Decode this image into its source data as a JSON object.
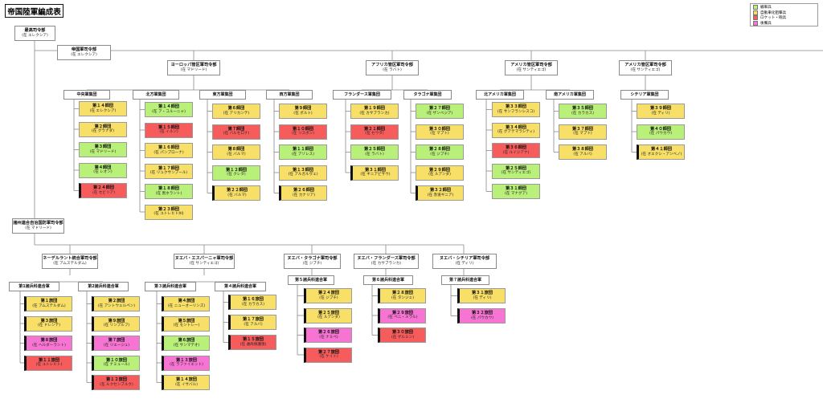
{
  "title": "帝国陸軍編成表",
  "legend": [
    {
      "label": "戦車兵",
      "color": "#b9f07a"
    },
    {
      "label": "自動車化狙撃兵",
      "color": "#f8df67"
    },
    {
      "label": "ロケット・砲兵",
      "color": "#f75c5c"
    },
    {
      "label": "後備兵",
      "color": "#f774d3"
    }
  ],
  "hq": {
    "supreme": {
      "name": "最高司令部",
      "loc": "(在 エレクシア)"
    },
    "imperial": {
      "name": "帝国軍司令部",
      "loc": "(在 エレクシア)"
    },
    "europe": {
      "name": "ヨーロッパ管区軍司令部",
      "loc": "(在 マドリード)"
    },
    "africa": {
      "name": "アフリカ管区軍司令部",
      "loc": "(在 ラバト)"
    },
    "america1": {
      "name": "アメリカ管区軍司令部",
      "loc": "(在 サンティエゴ)"
    },
    "america2": {
      "name": "アメリカ管区軍司令部",
      "loc": "(在 サンティエゴ)"
    },
    "allied": {
      "name": "諸州連合自治国防軍司令部",
      "loc": "(在 マドリード)"
    },
    "neder": {
      "name": "ネーデルラント統合軍司令部",
      "loc": "(在 アムステルダム)"
    },
    "nueva_esp": {
      "name": "ヌエバ・エスパーニャ軍司令部",
      "loc": "(在 サンティエゴ)"
    },
    "nueva_tar": {
      "name": "ヌエバ・タラゴナ軍司令部",
      "loc": "(在 ジブチ)"
    },
    "nueva_fla": {
      "name": "ヌエバ・フランダース軍司令部",
      "loc": "(在 カサブランカ)"
    },
    "nueva_sic": {
      "name": "ヌエバ・シチリア軍司令部",
      "loc": "(在 ディリ)"
    }
  },
  "groups": {
    "g_chuo": "中央軍集団",
    "g_hoppo": "北方軍集団",
    "g_toho": "東方軍集団",
    "g_seiho": "西方軍集団",
    "g_flanders": "フランダース軍集団",
    "g_tarragona": "タラゴナ軍集団",
    "g_kita_am": "北アメリカ軍集団",
    "g_minami_am": "南アメリカ軍集団",
    "g_sicilia": "シチリア軍集団",
    "g_l1": "第1諸兵科連合軍",
    "g_l2": "第2諸兵科連合軍",
    "g_l3": "第３諸兵科連合軍",
    "g_l4": "第４諸兵科連合軍",
    "g_l5": "第５諸兵科連合軍",
    "g_l6": "第６諸兵科連合軍",
    "g_l7": "第７諸兵科連合軍"
  },
  "units": {
    "d14": {
      "name": "第１４師団",
      "loc": "(在 エレクシア)",
      "type": "inf"
    },
    "d2": {
      "name": "第２師団",
      "loc": "(在 グラナダ)",
      "type": "inf"
    },
    "d3": {
      "name": "第３師団",
      "loc": "(在 マドリード)",
      "type": "arm"
    },
    "d4": {
      "name": "第４師団",
      "loc": "(在 レオン)",
      "type": "arm"
    },
    "d24": {
      "name": "第２４師団",
      "loc": "(在 セビリア)",
      "type": "rkt"
    },
    "d14b": {
      "name": "第１４師団",
      "loc": "(在 ア・コルーニャ)",
      "type": "arm"
    },
    "d15": {
      "name": "第１５師団",
      "loc": "(在 イルン)",
      "type": "rkt"
    },
    "d16": {
      "name": "第１６師団",
      "loc": "(在 パンプローナ)",
      "type": "inf"
    },
    "d17": {
      "name": "第１７師団",
      "loc": "(在 リュクサンブール)",
      "type": "inf"
    },
    "d18": {
      "name": "第１８師団",
      "loc": "(在 黒ホラント)",
      "type": "arm"
    },
    "d23": {
      "name": "第２３師団",
      "loc": "(在 ユトレヒト州)",
      "type": "inf"
    },
    "d6": {
      "name": "第６師団",
      "loc": "(在 アリカンテ)",
      "type": "inf"
    },
    "d7": {
      "name": "第７師団",
      "loc": "(在 バルセロナ)",
      "type": "rkt"
    },
    "d8": {
      "name": "第８師団",
      "loc": "(在 バルマ)",
      "type": "inf"
    },
    "d12": {
      "name": "第１２師団",
      "loc": "(在 クレタ)",
      "type": "arm"
    },
    "d22": {
      "name": "第２２師団",
      "loc": "(在 バルマ)",
      "type": "inf"
    },
    "d9": {
      "name": "第９師団",
      "loc": "(在 ポルト)",
      "type": "inf"
    },
    "d10": {
      "name": "第１０師団",
      "loc": "(在 リスボン)",
      "type": "rkt"
    },
    "d11": {
      "name": "第１１師団",
      "loc": "(在 アゾレス)",
      "type": "arm"
    },
    "d13": {
      "name": "第１３師団",
      "loc": "(在 アルガルヴェ)",
      "type": "inf"
    },
    "d26": {
      "name": "第２６師団",
      "loc": "(在 カナリア)",
      "type": "inf"
    },
    "d19": {
      "name": "第１９師団",
      "loc": "(在 カサブランカ)",
      "type": "inf"
    },
    "d21": {
      "name": "第２１師団",
      "loc": "(在 セウタ)",
      "type": "rkt"
    },
    "d25": {
      "name": "第２５師団",
      "loc": "(在 ラバト)",
      "type": "arm"
    },
    "d31": {
      "name": "第３１師団",
      "loc": "(在 ギニアビサウ)",
      "type": "inf"
    },
    "d27": {
      "name": "第２７師団",
      "loc": "(在 ザンベジア)",
      "type": "arm"
    },
    "d30": {
      "name": "第３０師団",
      "loc": "(在 マプト)",
      "type": "inf"
    },
    "d28": {
      "name": "第２８師団",
      "loc": "(在 ジブチ)",
      "type": "arm"
    },
    "d29": {
      "name": "第２９師団",
      "loc": "(在 ルアンダ)",
      "type": "inf"
    },
    "d32": {
      "name": "第３２師団",
      "loc": "(在 赤道ギニア)",
      "type": "inf"
    },
    "d33": {
      "name": "第３３師団",
      "loc": "(在 サンフランシスコ)",
      "type": "inf"
    },
    "d34": {
      "name": "第３４師団",
      "loc": "(在 グアテマラシティ)",
      "type": "inf"
    },
    "d36": {
      "name": "第３６師団",
      "loc": "(在 ルイジアナ)",
      "type": "rkt"
    },
    "d25b": {
      "name": "第２５師団",
      "loc": "(在 サンティエゴ)",
      "type": "arm"
    },
    "d31b": {
      "name": "第３１師団",
      "loc": "(在 マナグア)",
      "type": "arm"
    },
    "d35": {
      "name": "第３５師団",
      "loc": "(在 カラカス)",
      "type": "arm"
    },
    "d37": {
      "name": "第３７師団",
      "loc": "(在 マプト)",
      "type": "inf"
    },
    "d38": {
      "name": "第３８師団",
      "loc": "(在 アルバ)",
      "type": "inf"
    },
    "d39": {
      "name": "第３９師団",
      "loc": "(在 ディリ)",
      "type": "inf"
    },
    "d40": {
      "name": "第４０師団",
      "loc": "(在 パウカウ)",
      "type": "arm"
    },
    "d41": {
      "name": "第４１師団",
      "loc": "(在 オエクシ・アンベノ)",
      "type": "inf"
    },
    "b1": {
      "name": "第１旅団",
      "loc": "(在 アムステルダム)",
      "type": "inf"
    },
    "b3": {
      "name": "第３旅団",
      "loc": "(在 ドレンテ)",
      "type": "inf"
    },
    "b8": {
      "name": "第８旅団",
      "loc": "(在 ヘルダーラント)",
      "type": "fix"
    },
    "b11": {
      "name": "第１１旅団",
      "loc": "(在 ユトレヒト)",
      "type": "rkt"
    },
    "b2": {
      "name": "第２旅団",
      "loc": "(在 アントウェルペン)",
      "type": "inf"
    },
    "b9": {
      "name": "第９旅団",
      "loc": "(在 リンブルフ)",
      "type": "inf"
    },
    "b7": {
      "name": "第７旅団",
      "loc": "(在 リエージュ)",
      "type": "fix"
    },
    "b10": {
      "name": "第１０旅団",
      "loc": "(在 ナミュール)",
      "type": "arm"
    },
    "b12": {
      "name": "第１２旅団",
      "loc": "(在 ルクセンブルク)",
      "type": "rkt"
    },
    "b4": {
      "name": "第４旅団",
      "loc": "(在 ニューオーリンズ)",
      "type": "inf"
    },
    "b5": {
      "name": "第５旅団",
      "loc": "(在 モントレー)",
      "type": "inf"
    },
    "b6": {
      "name": "第６旅団",
      "loc": "(在 サンマテオ)",
      "type": "arm"
    },
    "b13": {
      "name": "第１３旅団",
      "loc": "(在 ラファイエット)",
      "type": "fix"
    },
    "b14": {
      "name": "第１４旅団",
      "loc": "(在 イサバル)",
      "type": "inf"
    },
    "b16": {
      "name": "第１６旅団",
      "loc": "(在 カラカス)",
      "type": "inf"
    },
    "b17": {
      "name": "第１７旅団",
      "loc": "(在 アルバ)",
      "type": "inf"
    },
    "b15": {
      "name": "第１５旅団",
      "loc": "(在 通商保護領)",
      "type": "rkt"
    },
    "b24": {
      "name": "第２４旅団",
      "loc": "(在 ジブチ)",
      "type": "inf"
    },
    "b25": {
      "name": "第２５旅団",
      "loc": "(在 ルアンダ)",
      "type": "inf"
    },
    "b26": {
      "name": "第２６旅団",
      "loc": "(在 ナミベ)",
      "type": "fix"
    },
    "b27": {
      "name": "第２７旅団",
      "loc": "(在 ケイト)",
      "type": "rkt"
    },
    "b28": {
      "name": "第２８旅団",
      "loc": "(在 タンジェ)",
      "type": "inf"
    },
    "b29": {
      "name": "第２９旅団",
      "loc": "(在 ベニ・メラル)",
      "type": "fix"
    },
    "b30": {
      "name": "第３０旅団",
      "loc": "(在 ゲルミン)",
      "type": "rkt"
    },
    "b31": {
      "name": "第３１旅団",
      "loc": "(在 ディリ)",
      "type": "inf"
    },
    "b32": {
      "name": "第３２旅団",
      "loc": "(在 パウカウ)",
      "type": "fix"
    }
  }
}
